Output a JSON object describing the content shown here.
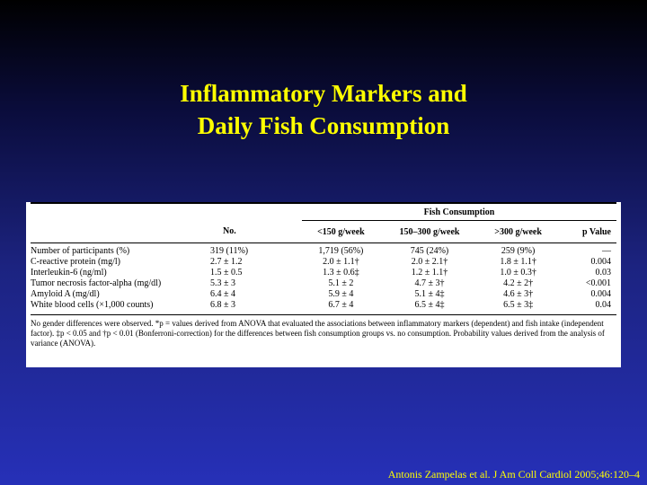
{
  "slide": {
    "title_line1": "Inflammatory Markers and",
    "title_line2": "Daily Fish Consumption",
    "citation": "Antonis Zampelas et al. J Am Coll Cardiol 2005;46:120–4"
  },
  "table": {
    "group_header": "Fish Consumption",
    "columns": [
      "No.",
      "<150 g/week",
      "150–300 g/week",
      ">300 g/week",
      "p Value"
    ],
    "rows": [
      {
        "label": "Number of participants (%)",
        "no": "319 (11%)",
        "c1": "1,719 (56%)",
        "c2": "745 (24%)",
        "c3": "259 (9%)",
        "p": "—"
      },
      {
        "label": "C-reactive protein (mg/l)",
        "no": "2.7 ± 1.2",
        "c1": "2.0 ± 1.1†",
        "c2": "2.0 ± 2.1†",
        "c3": "1.8 ± 1.1†",
        "p": "0.004"
      },
      {
        "label": "Interleukin-6 (ng/ml)",
        "no": "1.5 ± 0.5",
        "c1": "1.3 ± 0.6‡",
        "c2": "1.2 ± 1.1†",
        "c3": "1.0 ± 0.3†",
        "p": "0.03"
      },
      {
        "label": "Tumor necrosis factor-alpha (mg/dl)",
        "no": "5.3 ± 3",
        "c1": "5.1 ± 2",
        "c2": "4.7 ± 3†",
        "c3": "4.2 ± 2†",
        "p": "<0.001"
      },
      {
        "label": "Amyloid A (mg/dl)",
        "no": "6.4 ± 4",
        "c1": "5.9 ± 4",
        "c2": "5.1 ± 4‡",
        "c3": "4.6 ± 3†",
        "p": "0.004"
      },
      {
        "label": "White blood cells (×1,000 counts)",
        "no": "6.8 ± 3",
        "c1": "6.7 ± 4",
        "c2": "6.5 ± 4‡",
        "c3": "6.5 ± 3‡",
        "p": "0.04"
      }
    ],
    "footnote": "No gender differences were observed. *p = values derived from ANOVA that evaluated the associations between inflammatory markers (dependent) and fish intake (independent factor). ‡p < 0.05 and †p < 0.01 (Bonferroni-correction) for the differences between fish consumption groups vs. no consumption. Probability values derived from the analysis of variance (ANOVA)."
  }
}
